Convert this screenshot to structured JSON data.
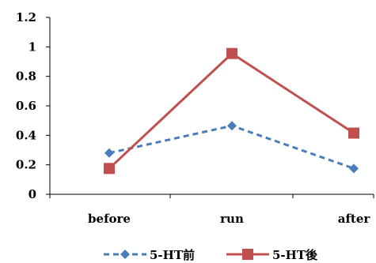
{
  "chart_data": {
    "type": "line",
    "categories": [
      "before",
      "run",
      "after"
    ],
    "series": [
      {
        "name": "5-HT前",
        "values": [
          0.28,
          0.465,
          0.175
        ],
        "color": "#4a7ebb",
        "line_style": "dashed",
        "marker": "diamond"
      },
      {
        "name": "5-HT後",
        "values": [
          0.175,
          0.955,
          0.415
        ],
        "color": "#c0504d",
        "line_style": "solid",
        "marker": "square"
      }
    ],
    "ylim": [
      0,
      1.2
    ],
    "yticks": [
      "0",
      "0.2",
      "0.4",
      "0.6",
      "0.8",
      "1",
      "1.2"
    ],
    "grid": false,
    "legend_position": "bottom"
  }
}
